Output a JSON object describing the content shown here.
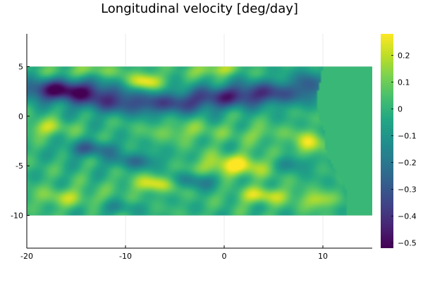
{
  "chart_data": {
    "type": "heatmap",
    "title": "Longitudinal velocity [deg/day]",
    "xlabel": "",
    "ylabel": "",
    "xlim": [
      -20,
      15
    ],
    "ylim": [
      -13.3,
      8.3
    ],
    "x_ticks": [
      "-20",
      "-10",
      "0",
      "10"
    ],
    "x_tick_values": [
      -20,
      -10,
      0,
      10
    ],
    "y_ticks": [
      "5",
      "0",
      "-5",
      "-10"
    ],
    "y_tick_values": [
      5,
      0,
      -5,
      -10
    ],
    "grid": true,
    "colormap": "viridis",
    "colorbar": {
      "min": -0.52,
      "max": 0.28,
      "tick_values": [
        0.2,
        0.1,
        0,
        -0.1,
        -0.2,
        -0.3,
        -0.4,
        -0.5
      ],
      "tick_labels": [
        "0.2",
        "0.1",
        "0",
        "−0.1",
        "−0.2",
        "−0.3",
        "−0.4",
        "−0.5"
      ]
    },
    "field": {
      "x_range": [
        -20,
        15
      ],
      "y_range": [
        -10,
        5
      ],
      "background_value": 0.015,
      "right_boundary": [
        [
          5,
          10
        ],
        [
          4,
          9.8
        ],
        [
          3,
          9.6
        ],
        [
          2,
          9.3
        ],
        [
          1,
          9.4
        ],
        [
          0,
          9.6
        ],
        [
          -1,
          9.9
        ],
        [
          -2,
          10.3
        ],
        [
          -3,
          10.2
        ],
        [
          -4,
          10.4
        ],
        [
          -5,
          11.0
        ],
        [
          -6,
          11.6
        ],
        [
          -7,
          12.2
        ],
        [
          -8,
          12.4
        ],
        [
          -9,
          12.3
        ],
        [
          -10,
          12.3
        ]
      ],
      "features": [
        {
          "x": -16.5,
          "y": 2.6,
          "value": -0.5,
          "sx": 3.0,
          "sy": 0.8
        },
        {
          "x": -12.0,
          "y": 1.6,
          "value": -0.25,
          "sx": 2.5,
          "sy": 0.9
        },
        {
          "x": -6.0,
          "y": 1.2,
          "value": -0.3,
          "sx": 3.5,
          "sy": 0.8
        },
        {
          "x": 0.0,
          "y": 2.0,
          "value": -0.3,
          "sx": 3.0,
          "sy": 0.8
        },
        {
          "x": 5.0,
          "y": 2.4,
          "value": -0.28,
          "sx": 3.0,
          "sy": 0.9
        },
        {
          "x": 8.5,
          "y": 3.5,
          "value": -0.2,
          "sx": 1.0,
          "sy": 1.0
        },
        {
          "x": -8.0,
          "y": 3.5,
          "value": 0.27,
          "sx": 1.3,
          "sy": 0.6
        },
        {
          "x": -1.0,
          "y": 4.7,
          "value": 0.2,
          "sx": 1.5,
          "sy": 0.5
        },
        {
          "x": -14.0,
          "y": 4.6,
          "value": 0.12,
          "sx": 2.5,
          "sy": 0.5
        },
        {
          "x": -18.0,
          "y": -1.2,
          "value": 0.18,
          "sx": 1.5,
          "sy": 0.6
        },
        {
          "x": -13.5,
          "y": -3.3,
          "value": -0.25,
          "sx": 2.0,
          "sy": 0.6
        },
        {
          "x": 1.0,
          "y": -5.0,
          "value": 0.28,
          "sx": 2.5,
          "sy": 0.8
        },
        {
          "x": 8.5,
          "y": -2.7,
          "value": 0.25,
          "sx": 1.0,
          "sy": 0.8
        },
        {
          "x": -7.0,
          "y": -6.8,
          "value": 0.25,
          "sx": 1.8,
          "sy": 0.6
        },
        {
          "x": -3.0,
          "y": -6.5,
          "value": -0.2,
          "sx": 2.0,
          "sy": 0.6
        },
        {
          "x": -9.0,
          "y": -4.5,
          "value": -0.2,
          "sx": 2.0,
          "sy": 0.6
        },
        {
          "x": 4.0,
          "y": -8.0,
          "value": 0.22,
          "sx": 2.0,
          "sy": 0.6
        },
        {
          "x": 9.5,
          "y": -8.5,
          "value": 0.2,
          "sx": 1.2,
          "sy": 0.6
        },
        {
          "x": -16.0,
          "y": -8.2,
          "value": 0.15,
          "sx": 2.5,
          "sy": 0.7
        },
        {
          "x": -11.0,
          "y": -9.2,
          "value": -0.1,
          "sx": 2.0,
          "sy": 0.5
        },
        {
          "x": 7.0,
          "y": -4.8,
          "value": -0.15,
          "sx": 1.5,
          "sy": 0.6
        },
        {
          "x": -4.0,
          "y": -1.5,
          "value": 0.12,
          "sx": 2.5,
          "sy": 0.7
        },
        {
          "x": 3.5,
          "y": -1.8,
          "value": 0.1,
          "sx": 2.0,
          "sy": 0.6
        }
      ]
    }
  }
}
